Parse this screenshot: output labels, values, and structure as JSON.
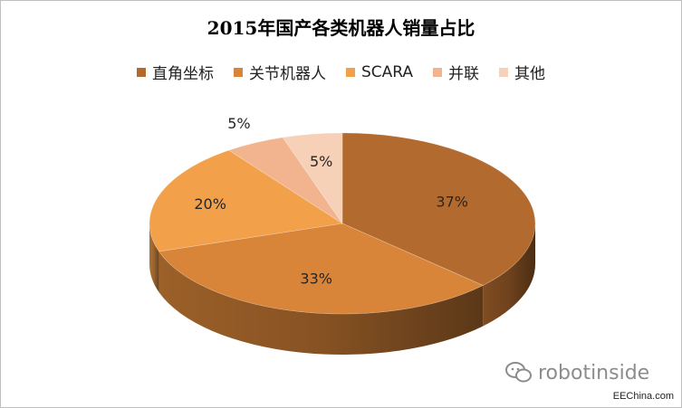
{
  "chart_data": {
    "type": "pie",
    "title": "2015年国产各类机器人销量占比",
    "categories": [
      "直角坐标",
      "关节机器人",
      "SCARA",
      "并联",
      "其他"
    ],
    "values": [
      37,
      33,
      20,
      5,
      5
    ],
    "labels": [
      "37%",
      "33%",
      "20%",
      "5%",
      "5%"
    ],
    "colors": [
      "#b36a2e",
      "#d98539",
      "#f2a04a",
      "#f2b48e",
      "#f7d0b8"
    ],
    "legend_position": "top",
    "style": "3d-pie"
  },
  "watermark": {
    "text": "robotinside",
    "icon": "wechat-icon"
  },
  "source_text": "EEChina.com"
}
